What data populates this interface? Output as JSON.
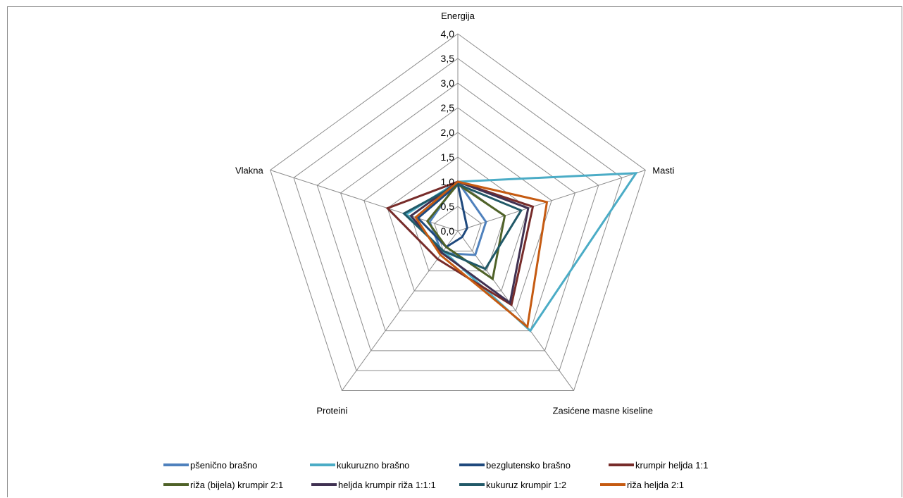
{
  "chart_data": {
    "type": "radar",
    "title": "",
    "axes": [
      "Energija",
      "Masti",
      "Zasićene masne kiseline",
      "Proteini",
      "Vlakna"
    ],
    "tick_labels": [
      "0,0",
      "0,5",
      "1,0",
      "1,5",
      "2,0",
      "2,5",
      "3,0",
      "3,5",
      "4,0"
    ],
    "range": [
      0,
      4
    ],
    "grid": true,
    "legend_position": "bottom",
    "series": [
      {
        "name": "pšenično brašno",
        "color": "#4f81bd",
        "values": [
          1.0,
          0.6,
          0.6,
          0.55,
          0.6
        ]
      },
      {
        "name": "kukuruzno brašno",
        "color": "#4bacc6",
        "values": [
          1.0,
          3.8,
          2.5,
          0.5,
          1.1
        ]
      },
      {
        "name": "bezglutensko brašno",
        "color": "#1f497d",
        "values": [
          0.95,
          0.2,
          0.15,
          0.4,
          0.85
        ]
      },
      {
        "name": "krumpir heljda 1:1",
        "color": "#772c2a",
        "values": [
          1.0,
          1.6,
          1.85,
          0.7,
          1.5
        ]
      },
      {
        "name": "riža (bijela) krumpir 2:1",
        "color": "#4f6228",
        "values": [
          0.95,
          1.0,
          1.2,
          0.4,
          0.65
        ]
      },
      {
        "name": "heljda krumpir riža 1:1:1",
        "color": "#403152",
        "values": [
          1.0,
          1.5,
          1.8,
          0.55,
          1.0
        ]
      },
      {
        "name": "kukuruz krumpir 1:2",
        "color": "#215968",
        "values": [
          0.95,
          1.35,
          0.95,
          0.5,
          1.15
        ]
      },
      {
        "name": "riža heljda 2:1",
        "color": "#c55a11",
        "values": [
          1.0,
          1.9,
          2.4,
          0.6,
          0.9
        ]
      }
    ]
  }
}
